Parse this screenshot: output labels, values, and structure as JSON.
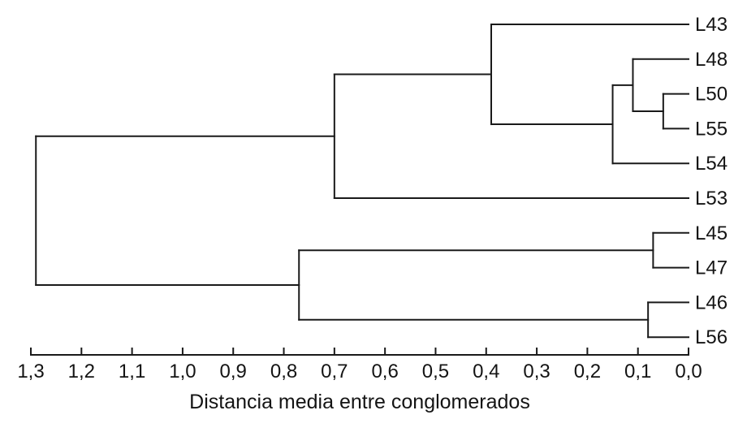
{
  "chart_data": {
    "type": "dendrogram",
    "orientation": "horizontal, leaves on right, distance 0 at right edge",
    "title": "",
    "xlabel": "Distancia media entre conglomerados",
    "axis_range": [
      1.3,
      0.0
    ],
    "axis_tick_step": 0.1,
    "axis_ticks": [
      "1,3",
      "1,2",
      "1,1",
      "1,0",
      "0,9",
      "0,8",
      "0,7",
      "0,6",
      "0,5",
      "0,4",
      "0,3",
      "0,2",
      "0,1",
      "0,0"
    ],
    "leaves": [
      "L43",
      "L48",
      "L50",
      "L55",
      "L54",
      "L53",
      "L45",
      "L47",
      "L46",
      "L56"
    ],
    "line_color": "#1a1a1a",
    "background_color": "#ffffff",
    "grid": false,
    "legend": false,
    "tree": {
      "d": 1.29,
      "children": [
        {
          "d": 0.7,
          "children": [
            {
              "d": 0.39,
              "children": [
                {
                  "leaf": "L43"
                },
                {
                  "d": 0.15,
                  "children": [
                    {
                      "d": 0.11,
                      "children": [
                        {
                          "leaf": "L48"
                        },
                        {
                          "d": 0.05,
                          "children": [
                            {
                              "leaf": "L50"
                            },
                            {
                              "leaf": "L55"
                            }
                          ]
                        }
                      ]
                    },
                    {
                      "leaf": "L54"
                    }
                  ]
                }
              ]
            },
            {
              "leaf": "L53"
            }
          ]
        },
        {
          "d": 0.77,
          "children": [
            {
              "d": 0.07,
              "children": [
                {
                  "leaf": "L45"
                },
                {
                  "leaf": "L47"
                }
              ]
            },
            {
              "d": 0.08,
              "children": [
                {
                  "leaf": "L46"
                },
                {
                  "leaf": "L56"
                }
              ]
            }
          ]
        }
      ]
    }
  }
}
